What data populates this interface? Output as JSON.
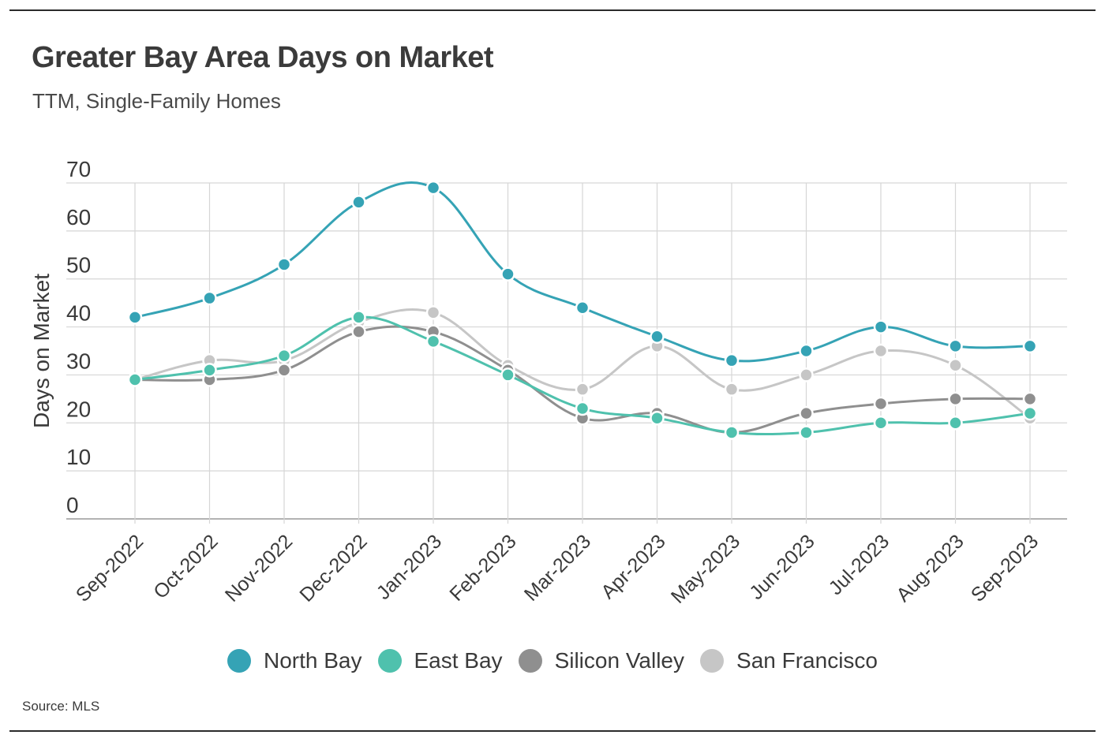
{
  "header": {
    "title": "Greater Bay Area Days on Market",
    "subtitle": "TTM, Single-Family Homes"
  },
  "footer": {
    "source": "Source:  MLS"
  },
  "chart_data": {
    "type": "line",
    "title": "Greater Bay Area Days on Market",
    "subtitle": "TTM, Single-Family Homes",
    "xlabel": "",
    "ylabel": "Days on Market",
    "ylim": [
      0,
      70
    ],
    "yticks": [
      0,
      10,
      20,
      30,
      40,
      50,
      60,
      70
    ],
    "grid": true,
    "legend_position": "bottom",
    "categories": [
      "Sep-2022",
      "Oct-2022",
      "Nov-2022",
      "Dec-2022",
      "Jan-2023",
      "Feb-2023",
      "Mar-2023",
      "Apr-2023",
      "May-2023",
      "Jun-2023",
      "Jul-2023",
      "Aug-2023",
      "Sep-2023"
    ],
    "series": [
      {
        "name": "North Bay",
        "color": "#35a3b5",
        "values": [
          42,
          46,
          53,
          66,
          69,
          51,
          44,
          38,
          33,
          35,
          40,
          36,
          36
        ]
      },
      {
        "name": "East Bay",
        "color": "#4fc1ad",
        "values": [
          29,
          31,
          34,
          42,
          37,
          30,
          23,
          21,
          18,
          18,
          20,
          20,
          22
        ]
      },
      {
        "name": "Silicon Valley",
        "color": "#8f8f8f",
        "values": [
          29,
          29,
          31,
          39,
          39,
          31,
          21,
          22,
          18,
          22,
          24,
          25,
          25
        ]
      },
      {
        "name": "San Francisco",
        "color": "#c6c6c6",
        "values": [
          29,
          33,
          33,
          41,
          43,
          32,
          27,
          36,
          27,
          30,
          35,
          32,
          21
        ]
      }
    ]
  }
}
